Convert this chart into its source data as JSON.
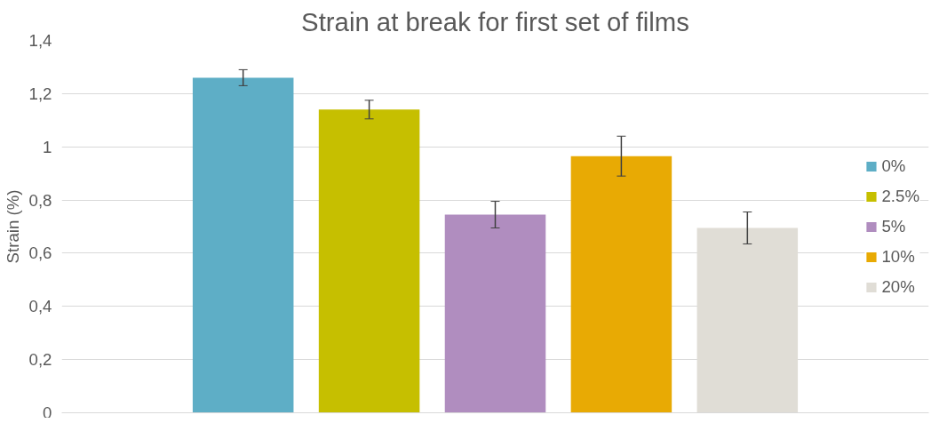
{
  "chart_data": {
    "type": "bar",
    "title": "Strain at break for first set of films",
    "ylabel": "Strain (%)",
    "categories": [
      null
    ],
    "series": [
      {
        "name": "0%",
        "color": "#5eaec6",
        "values": [
          1.26
        ],
        "errors": [
          0.03
        ]
      },
      {
        "name": "2.5%",
        "color": "#c6bf00",
        "values": [
          1.14
        ],
        "errors": [
          0.035
        ]
      },
      {
        "name": "5%",
        "color": "#b08dbf",
        "values": [
          0.745
        ],
        "errors": [
          0.05
        ]
      },
      {
        "name": "10%",
        "color": "#e8aa04",
        "values": [
          0.965
        ],
        "errors": [
          0.075
        ]
      },
      {
        "name": "20%",
        "color": "#e0ddd6",
        "values": [
          0.695
        ],
        "errors": [
          0.06
        ]
      }
    ],
    "ylim": [
      0,
      1.4
    ],
    "yticks": [
      0,
      {
        "value": 0.2,
        "label": "0,2"
      },
      {
        "value": 0.4,
        "label": "0,4"
      },
      {
        "value": 0.6,
        "label": "0,6"
      },
      {
        "value": 0.8,
        "label": "0,8"
      },
      1,
      {
        "value": 1.2,
        "label": "1,2"
      },
      {
        "value": 1.4,
        "label": "1,4"
      }
    ],
    "grid": "y",
    "legend": "right"
  }
}
